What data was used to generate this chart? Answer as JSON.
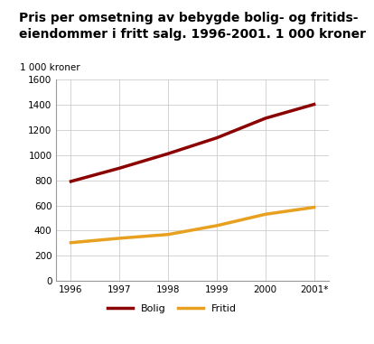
{
  "title_line1": "Pris per omsetning av bebygde bolig- og fritids-",
  "title_line2": "eiendommer i fritt salg. 1996-2001. 1 000 kroner",
  "ylabel": "1 000 kroner",
  "years": [
    1996,
    1997,
    1998,
    1999,
    2000,
    2001
  ],
  "xtick_labels": [
    "1996",
    "1997",
    "1998",
    "1999",
    "2000",
    "2001*"
  ],
  "bolig": [
    790,
    895,
    1010,
    1135,
    1290,
    1400
  ],
  "fritid": [
    305,
    340,
    370,
    440,
    530,
    585
  ],
  "bolig_color": "#8B0000",
  "fritid_color": "#E8A020",
  "ylim": [
    0,
    1600
  ],
  "yticks": [
    0,
    200,
    400,
    600,
    800,
    1000,
    1200,
    1400,
    1600
  ],
  "grid_color": "#cccccc",
  "bg_color": "#ffffff",
  "legend_bolig": "Bolig",
  "legend_fritid": "Fritid",
  "line_width": 2.5,
  "teal_color": "#4db8b8",
  "title_fontsize": 10,
  "tick_fontsize": 7.5,
  "ylabel_fontsize": 7.5,
  "legend_fontsize": 8
}
